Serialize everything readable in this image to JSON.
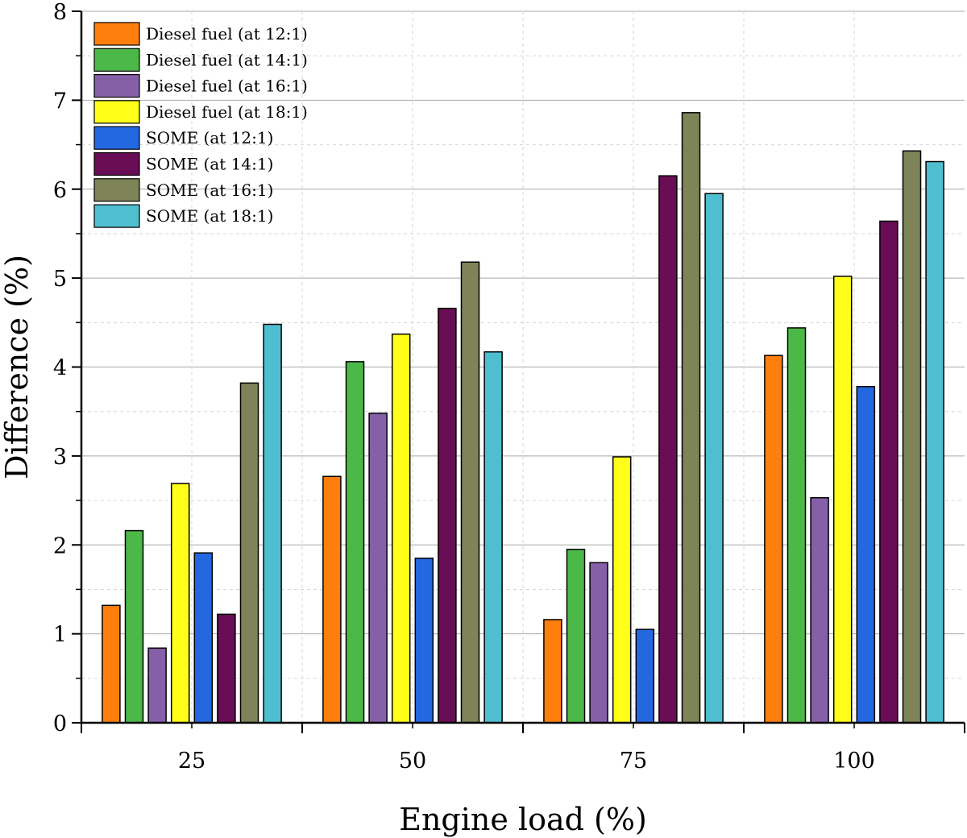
{
  "chart_data": {
    "type": "bar",
    "categories": [
      "25",
      "50",
      "75",
      "100"
    ],
    "xlabel": "Engine load (%)",
    "ylabel": "Difference (%)",
    "ylim": [
      0,
      8
    ],
    "yticks": [
      "0",
      "1",
      "2",
      "3",
      "4",
      "5",
      "6",
      "7",
      "8"
    ],
    "grid": true,
    "legend_position": "top-left",
    "series": [
      {
        "name": "Diesel fuel (at 12:1)",
        "color": "#ff7f0e",
        "values": [
          1.32,
          2.77,
          1.16,
          4.13
        ]
      },
      {
        "name": "Diesel fuel (at 14:1)",
        "color": "#4cb848",
        "values": [
          2.16,
          4.06,
          1.95,
          4.44
        ]
      },
      {
        "name": "Diesel fuel (at 16:1)",
        "color": "#8560a8",
        "values": [
          0.84,
          3.48,
          1.8,
          2.53
        ]
      },
      {
        "name": "Diesel fuel (at 18:1)",
        "color": "#ffff1a",
        "values": [
          2.69,
          4.37,
          2.99,
          5.02
        ]
      },
      {
        "name": "SOME (at 12:1)",
        "color": "#2468e0",
        "values": [
          1.91,
          1.85,
          1.05,
          3.78
        ]
      },
      {
        "name": "SOME (at 14:1)",
        "color": "#690d55",
        "values": [
          1.22,
          4.66,
          6.15,
          5.64
        ]
      },
      {
        "name": "SOME (at 16:1)",
        "color": "#7e8457",
        "values": [
          3.82,
          5.18,
          6.86,
          6.43
        ]
      },
      {
        "name": "SOME (at 18:1)",
        "color": "#4fbfd0",
        "values": [
          4.48,
          4.17,
          5.95,
          6.31
        ]
      }
    ]
  }
}
